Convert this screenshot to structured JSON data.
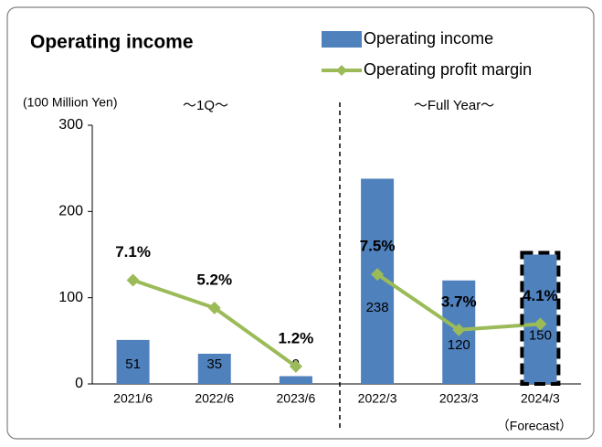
{
  "chart_data": {
    "type": "bar",
    "title": "Operating income",
    "y_label": "(100 Million Yen)",
    "note": "（Forecast）",
    "series": [
      {
        "name": "Operating income",
        "color": "#4f81bd",
        "type": "bar"
      },
      {
        "name": "Operating profit margin",
        "color": "#9bbb59",
        "type": "line",
        "axis": "y2"
      }
    ],
    "panels": [
      {
        "label": "～1Q～",
        "categories": [
          "2021/6",
          "2022/6",
          "2023/6"
        ],
        "series": [
          {
            "values": [
              51,
              35,
              9
            ]
          },
          {
            "values": [
              7.1,
              5.2,
              1.2
            ],
            "value_labels": [
              "7.1%",
              "5.2%",
              "1.2%"
            ]
          }
        ]
      },
      {
        "label": "～Full Year～",
        "categories": [
          "2022/3",
          "2023/3",
          "2024/3"
        ],
        "series": [
          {
            "values": [
              238,
              120,
              150
            ]
          },
          {
            "values": [
              7.5,
              3.7,
              4.1
            ],
            "value_labels": [
              "7.5%",
              "3.7%",
              "4.1%"
            ]
          }
        ]
      }
    ],
    "ylim": [
      0,
      300
    ],
    "yticks": [
      0,
      100,
      200,
      300
    ],
    "y2lim": [
      0,
      17.7
    ]
  }
}
